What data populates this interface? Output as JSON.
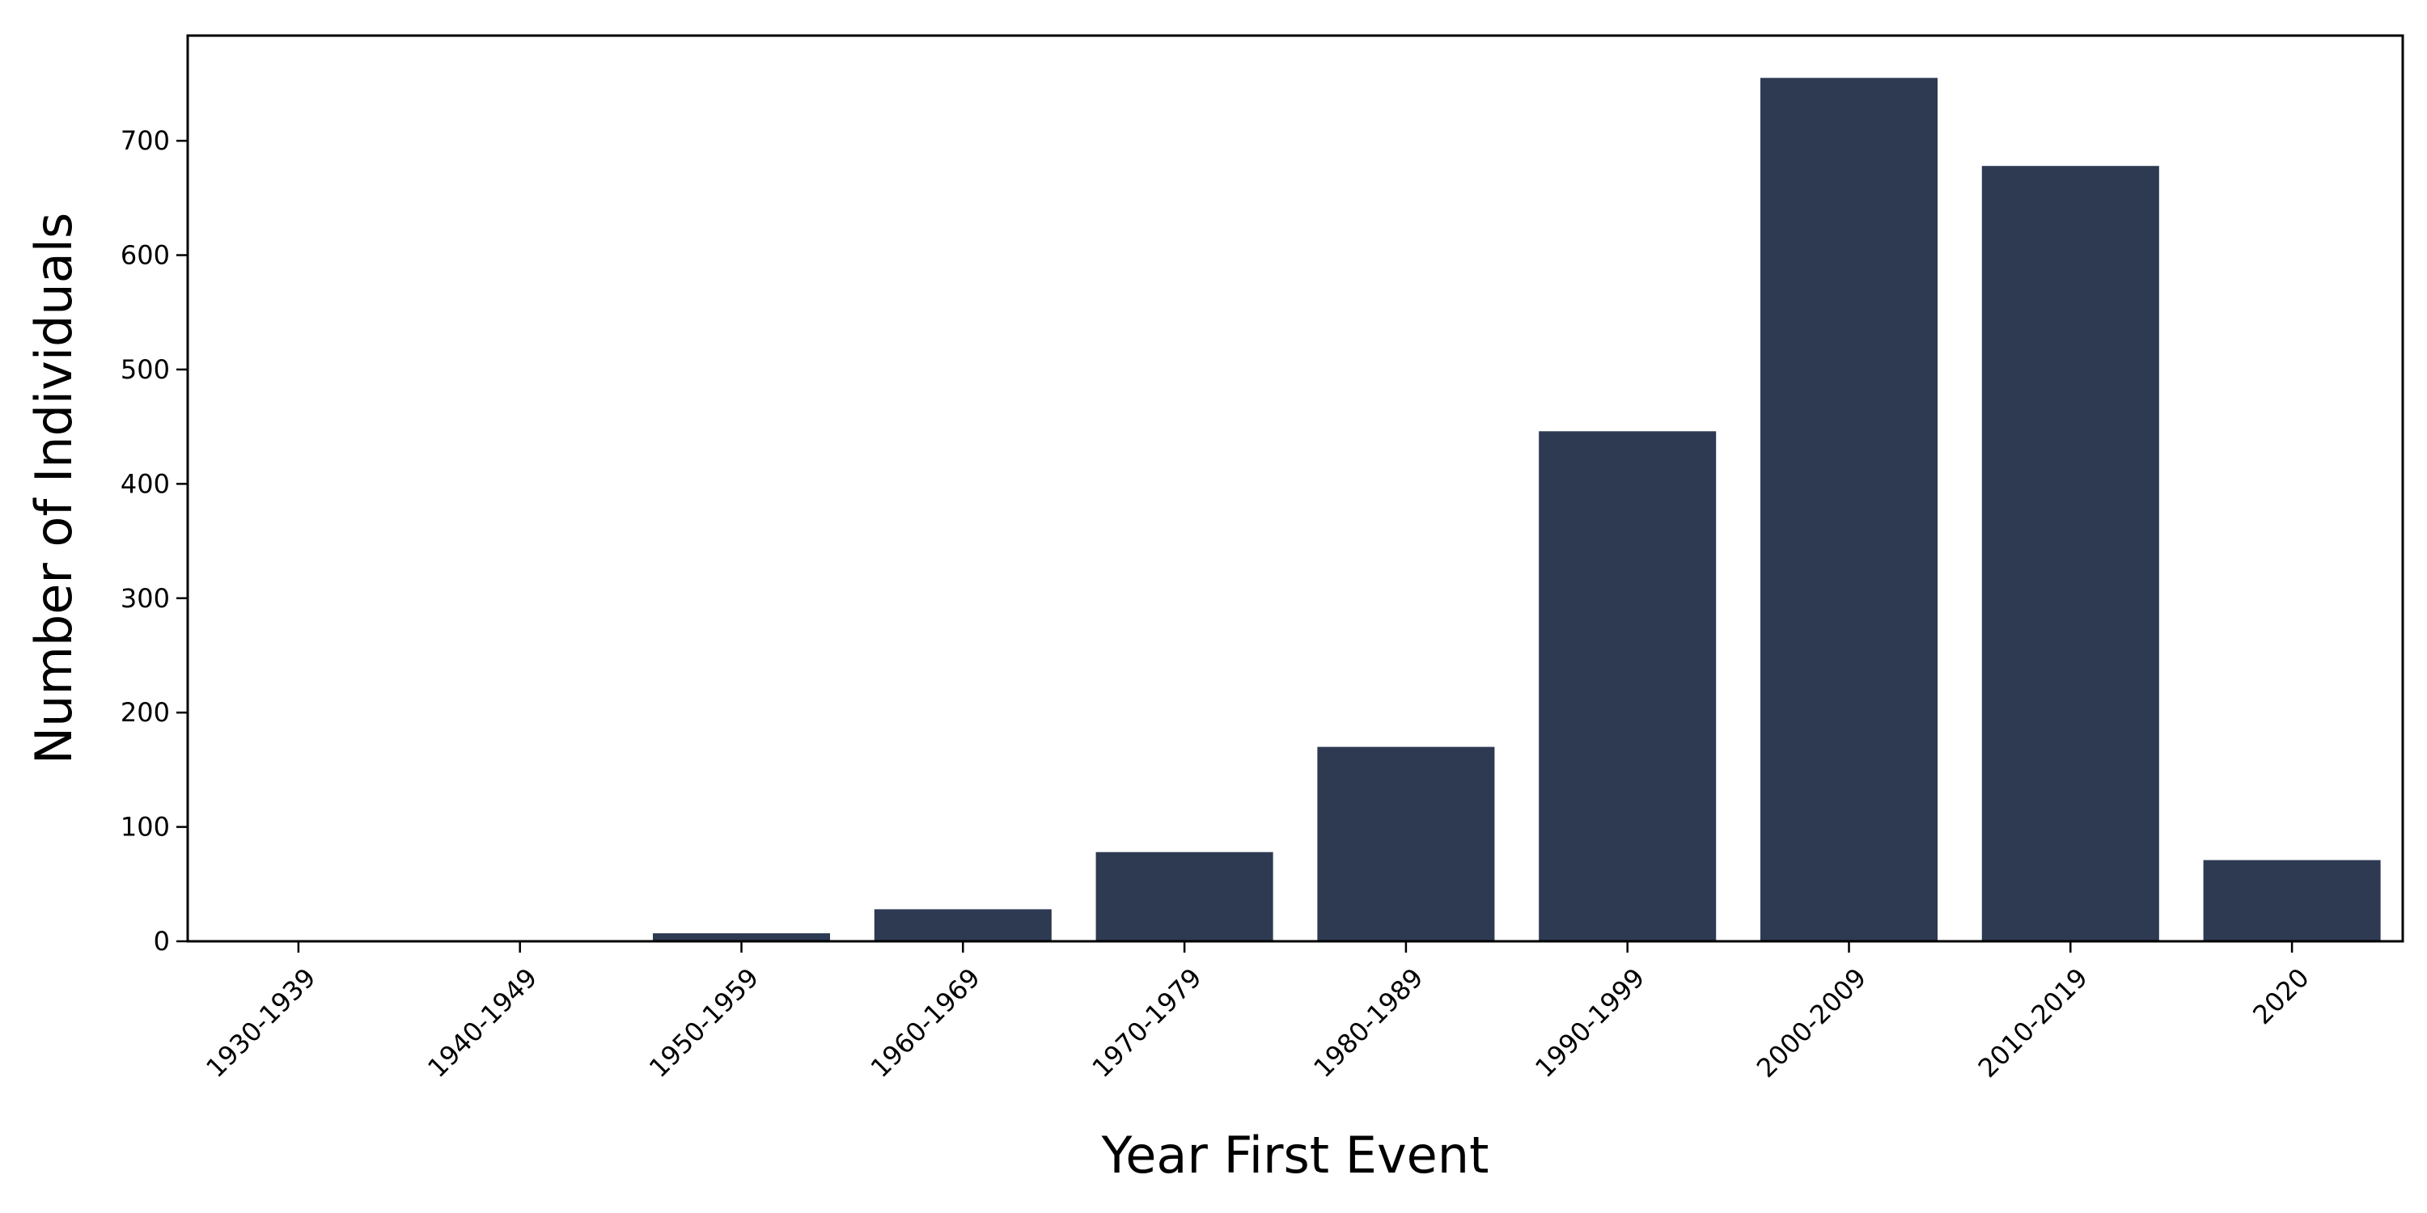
{
  "chart_data": {
    "type": "bar",
    "title": "",
    "xlabel": "Year First Event",
    "ylabel": "Number of Individuals",
    "categories": [
      "1930-1939",
      "1940-1949",
      "1950-1959",
      "1960-1969",
      "1970-1979",
      "1980-1989",
      "1990-1999",
      "2000-2009",
      "2010-2019",
      "2020"
    ],
    "values": [
      0,
      0,
      7,
      28,
      78,
      170,
      446,
      755,
      678,
      71
    ],
    "ylim": [
      0,
      792
    ],
    "yticks": [
      0,
      100,
      200,
      300,
      400,
      500,
      600,
      700
    ],
    "grid": false,
    "legend": "none",
    "bar_color": "#2d3a52"
  }
}
